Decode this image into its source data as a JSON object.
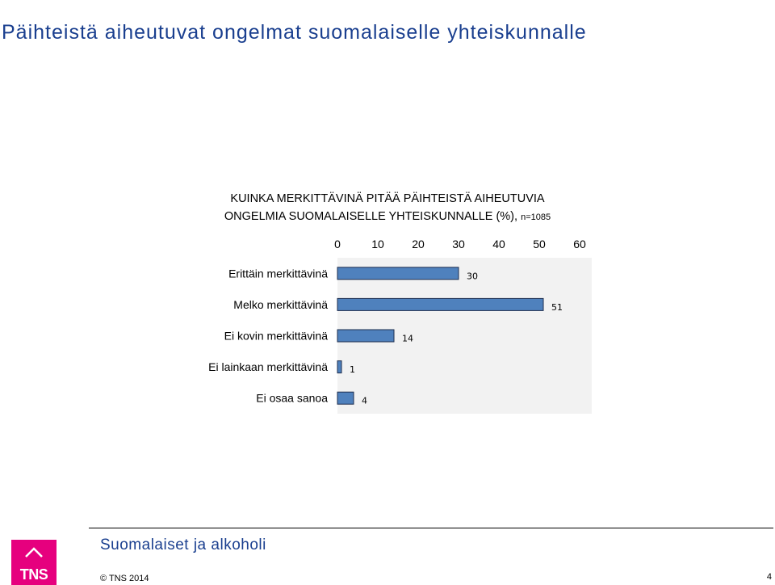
{
  "slide": {
    "title": "Päihteistä aiheutuvat ongelmat suomalaiselle yhteiskunnalle"
  },
  "chart_data": {
    "type": "bar",
    "orientation": "horizontal",
    "title_line1": "KUINKA MERKITTÄVINÄ PITÄÄ PÄIHTEISTÄ AIHEUTUVIA",
    "title_line2": "ONGELMIA SUOMALAISELLE YHTEISKUNNALLE (%),",
    "sample_note": "n=1085",
    "categories": [
      "Erittäin merkittävinä",
      "Melko merkittävinä",
      "Ei kovin merkittävinä",
      "Ei lainkaan merkittävinä",
      "Ei osaa sanoa"
    ],
    "values": [
      30,
      51,
      14,
      1,
      4
    ],
    "x_ticks": [
      "0",
      "10",
      "20",
      "30",
      "40",
      "50",
      "60"
    ],
    "xlim": [
      0,
      63
    ],
    "axis_position": "top",
    "data_labels": [
      "30",
      "51",
      "14",
      "1",
      "4"
    ],
    "legend": "none",
    "grid": false,
    "colors": {
      "bar": "#4f81bd",
      "bar_border": "#1f2f4f",
      "plot_bg": "#f2f2f2"
    }
  },
  "footer": {
    "report_name": "Suomalaiset ja alkoholi",
    "copyright": "© TNS 2014",
    "page_number": "4",
    "logo_text": "TNS"
  },
  "colors": {
    "title": "#1a3f8f",
    "logo": "#e6007e"
  }
}
